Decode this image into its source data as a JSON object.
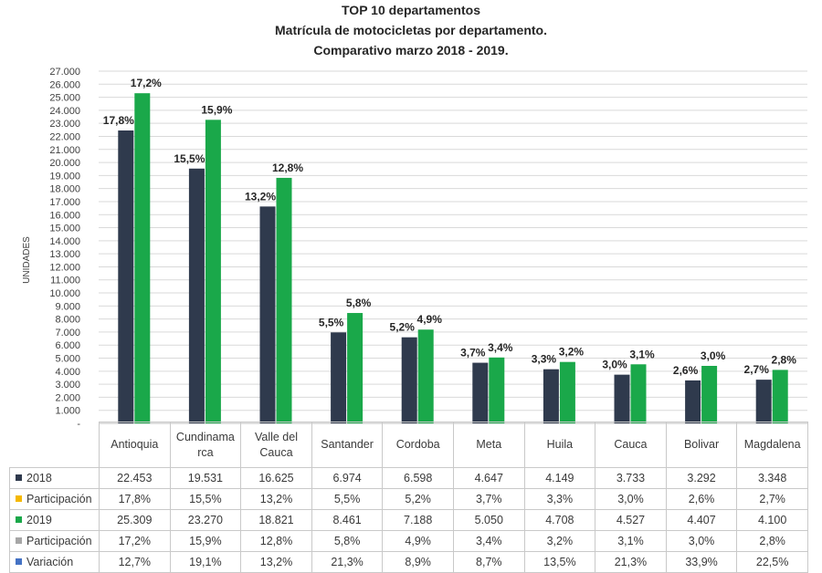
{
  "chart_data": {
    "type": "bar",
    "title": [
      "TOP 10 departamentos",
      "Matrícula de motocicletas por departamento.",
      "Comparativo marzo 2018 - 2019."
    ],
    "ylabel": "UNIDADES",
    "xlabel": "",
    "ylim": [
      0,
      27000
    ],
    "ytick_step": 1000,
    "ytick_labels": [
      "-",
      "1.000",
      "2.000",
      "3.000",
      "4.000",
      "5.000",
      "6.000",
      "7.000",
      "8.000",
      "9.000",
      "10.000",
      "11.000",
      "12.000",
      "13.000",
      "14.000",
      "15.000",
      "16.000",
      "17.000",
      "18.000",
      "19.000",
      "20.000",
      "21.000",
      "22.000",
      "23.000",
      "24.000",
      "25.000",
      "26.000",
      "27.000"
    ],
    "grid": true,
    "categories": [
      "Antioquia",
      "Cundinamarca",
      "Valle del Cauca",
      "Santander",
      "Cordoba",
      "Meta",
      "Huila",
      "Cauca",
      "Bolivar",
      "Magdalena"
    ],
    "series": [
      {
        "name": "2018",
        "color": "#2f3a4d",
        "values": [
          22453,
          19531,
          16625,
          6974,
          6598,
          4647,
          4149,
          3733,
          3292,
          3348
        ],
        "labels": [
          "17,8%",
          "15,5%",
          "13,2%",
          "5,5%",
          "5,2%",
          "3,7%",
          "3,3%",
          "3,0%",
          "2,6%",
          "2,7%"
        ]
      },
      {
        "name": "2019",
        "color": "#1aa84a",
        "values": [
          25309,
          23270,
          18821,
          8461,
          7188,
          5050,
          4708,
          4527,
          4407,
          4100
        ],
        "labels": [
          "17,2%",
          "15,9%",
          "12,8%",
          "5,8%",
          "4,9%",
          "3,4%",
          "3,2%",
          "3,1%",
          "3,0%",
          "2,8%"
        ]
      }
    ],
    "table": {
      "header": [
        "Antioquia",
        "Cundinama rca",
        "Valle del Cauca",
        "Santander",
        "Cordoba",
        "Meta",
        "Huila",
        "Cauca",
        "Bolivar",
        "Magdalena"
      ],
      "rows": [
        {
          "label": "2018",
          "color": "#2f3a4d",
          "cells": [
            "22.453",
            "19.531",
            "16.625",
            "6.974",
            "6.598",
            "4.647",
            "4.149",
            "3.733",
            "3.292",
            "3.348"
          ]
        },
        {
          "label": "Participación",
          "color": "#f5b800",
          "cells": [
            "17,8%",
            "15,5%",
            "13,2%",
            "5,5%",
            "5,2%",
            "3,7%",
            "3,3%",
            "3,0%",
            "2,6%",
            "2,7%"
          ]
        },
        {
          "label": "2019",
          "color": "#1aa84a",
          "cells": [
            "25.309",
            "23.270",
            "18.821",
            "8.461",
            "7.188",
            "5.050",
            "4.708",
            "4.527",
            "4.407",
            "4.100"
          ]
        },
        {
          "label": "Participación",
          "color": "#a6a6a6",
          "cells": [
            "17,2%",
            "15,9%",
            "12,8%",
            "5,8%",
            "4,9%",
            "3,4%",
            "3,2%",
            "3,1%",
            "3,0%",
            "2,8%"
          ]
        },
        {
          "label": "Variación",
          "color": "#4472c4",
          "cells": [
            "12,7%",
            "19,1%",
            "13,2%",
            "21,3%",
            "8,9%",
            "8,7%",
            "13,5%",
            "21,3%",
            "33,9%",
            "22,5%"
          ]
        }
      ]
    }
  }
}
